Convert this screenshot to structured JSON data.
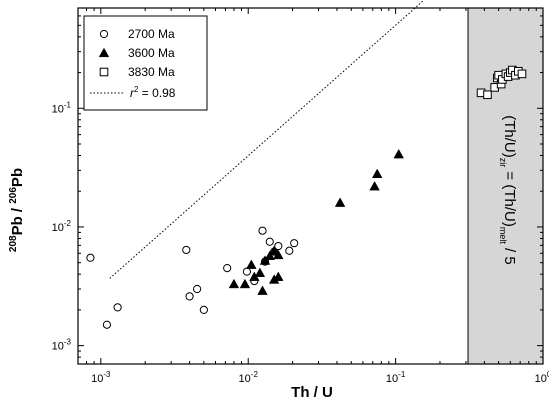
{
  "chart_data": {
    "type": "scatter",
    "xlabel": "Th / U",
    "ylabel_parts": {
      "base": "Pb / ",
      "sup1": "208",
      "sup2": "206",
      "end": "Pb"
    },
    "x_scale": "log",
    "y_scale": "log",
    "xlim": [
      0.0007,
      1.0
    ],
    "ylim": [
      0.0007,
      0.7
    ],
    "x_ticks": [
      {
        "value": 0.001,
        "base": "10",
        "exp": "-3"
      },
      {
        "value": 0.01,
        "base": "10",
        "exp": "-2"
      },
      {
        "value": 0.1,
        "base": "10",
        "exp": "-1"
      },
      {
        "value": 1.0,
        "base": "10",
        "exp": "0"
      }
    ],
    "y_ticks": [
      {
        "value": 0.001,
        "base": "10",
        "exp": "-3"
      },
      {
        "value": 0.01,
        "base": "10",
        "exp": "-2"
      },
      {
        "value": 0.1,
        "base": "10",
        "exp": "-1"
      }
    ],
    "series": [
      {
        "name": "2700 Ma",
        "marker": "circle-open",
        "points": [
          [
            0.00085,
            0.0055
          ],
          [
            0.0011,
            0.0015
          ],
          [
            0.0013,
            0.0021
          ],
          [
            0.0038,
            0.0064
          ],
          [
            0.004,
            0.0026
          ],
          [
            0.0045,
            0.003
          ],
          [
            0.005,
            0.002
          ],
          [
            0.0072,
            0.0045
          ],
          [
            0.0098,
            0.0042
          ],
          [
            0.011,
            0.0035
          ],
          [
            0.0125,
            0.0093
          ],
          [
            0.013,
            0.0051
          ],
          [
            0.014,
            0.0075
          ],
          [
            0.015,
            0.0062
          ],
          [
            0.016,
            0.0069
          ],
          [
            0.019,
            0.0063
          ],
          [
            0.0205,
            0.0073
          ]
        ]
      },
      {
        "name": "3600 Ma",
        "marker": "triangle-filled",
        "points": [
          [
            0.008,
            0.0033
          ],
          [
            0.0095,
            0.0033
          ],
          [
            0.0105,
            0.0048
          ],
          [
            0.011,
            0.0038
          ],
          [
            0.012,
            0.0041
          ],
          [
            0.0125,
            0.0029
          ],
          [
            0.013,
            0.0052
          ],
          [
            0.014,
            0.0057
          ],
          [
            0.015,
            0.0063
          ],
          [
            0.015,
            0.0036
          ],
          [
            0.016,
            0.0058
          ],
          [
            0.016,
            0.0038
          ],
          [
            0.042,
            0.016
          ],
          [
            0.072,
            0.022
          ],
          [
            0.075,
            0.028
          ],
          [
            0.105,
            0.041
          ]
        ]
      },
      {
        "name": "3830 Ma",
        "marker": "square-open",
        "points": [
          [
            0.38,
            0.135
          ],
          [
            0.42,
            0.13
          ],
          [
            0.47,
            0.15
          ],
          [
            0.49,
            0.18
          ],
          [
            0.5,
            0.19
          ],
          [
            0.52,
            0.16
          ],
          [
            0.53,
            0.175
          ],
          [
            0.56,
            0.195
          ],
          [
            0.58,
            0.185
          ],
          [
            0.6,
            0.2
          ],
          [
            0.62,
            0.21
          ],
          [
            0.65,
            0.19
          ],
          [
            0.68,
            0.205
          ],
          [
            0.72,
            0.195
          ]
        ]
      }
    ],
    "regression": {
      "label_prefix": "r",
      "label_exp": "2",
      "label_value": " = 0.98",
      "x_start": 0.00115,
      "x_end": 1.0,
      "slope": 1.1,
      "intercept_log10": 0.8
    },
    "shaded_region": {
      "x_from": 0.31,
      "x_to": 1.0,
      "color": "#d6d6d6",
      "annotation": {
        "p1": "(Th/U)",
        "s1": "zir",
        "p2": " = (Th/U)",
        "s2": "melt",
        "p3": " / 5"
      }
    },
    "legend_position": "top-left",
    "grid": false
  }
}
